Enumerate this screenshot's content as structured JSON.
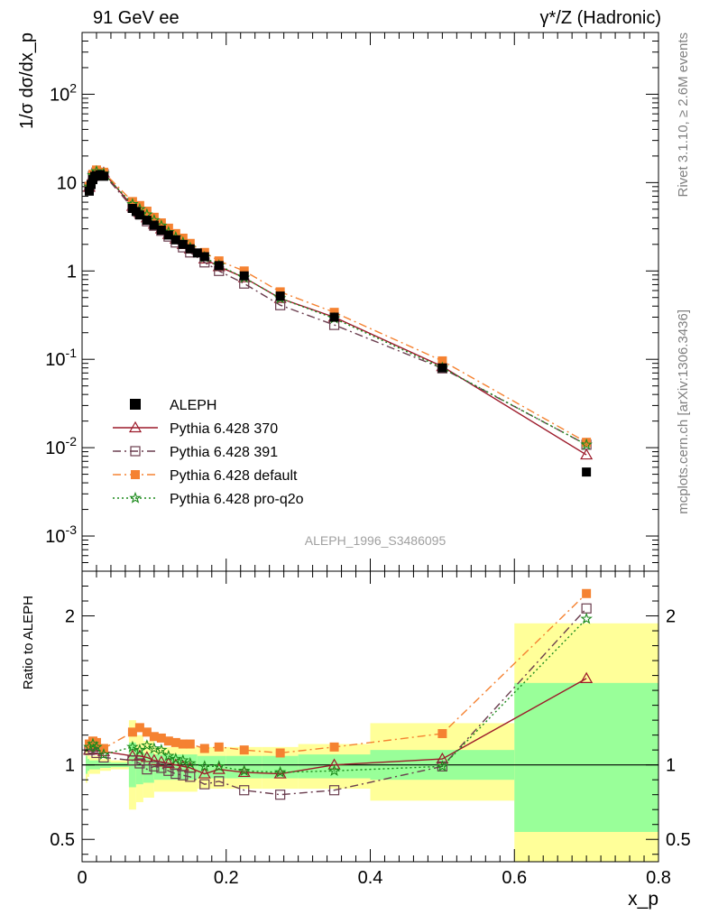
{
  "header": {
    "left_label": "91 GeV ee",
    "right_label": "γ*/Z (Hadronic)"
  },
  "side_labels": {
    "rivet": "Rivet 3.1.10, ≥ 2.6M events",
    "mcplots": "mcplots.cern.ch [arXiv:1306.3436]"
  },
  "analysis_id": "ALEPH_1996_S3486095",
  "chart_data": [
    {
      "type": "scatter",
      "panel": "main",
      "ylabel": "1/σ dσ/dx_p",
      "yscale": "log",
      "ylim": [
        0.0004,
        500
      ],
      "xlim": [
        0,
        0.8
      ],
      "y_ticks": [
        {
          "value": 0.001,
          "label": "10^-3"
        },
        {
          "value": 0.01,
          "label": "10^-2"
        },
        {
          "value": 0.1,
          "label": "10^-1"
        },
        {
          "value": 1,
          "label": "1"
        },
        {
          "value": 10,
          "label": "10"
        },
        {
          "value": 100,
          "label": "10^2"
        }
      ],
      "legend_position": "bottom-left",
      "series": [
        {
          "name": "ALEPH",
          "color": "#000000",
          "line": "none",
          "marker": "filled-square",
          "x": [
            0.01,
            0.0125,
            0.015,
            0.0175,
            0.02,
            0.025,
            0.03,
            0.07,
            0.075,
            0.08,
            0.09,
            0.1,
            0.11,
            0.12,
            0.13,
            0.14,
            0.15,
            0.16,
            0.17,
            0.19,
            0.225,
            0.275,
            0.35,
            0.5,
            0.7
          ],
          "y": [
            8.0,
            9.5,
            10.8,
            11.8,
            12.0,
            12.3,
            11.8,
            5.1,
            4.7,
            4.3,
            3.75,
            3.3,
            2.9,
            2.55,
            2.25,
            2.0,
            1.78,
            1.6,
            1.45,
            1.15,
            0.88,
            0.52,
            0.3,
            0.08,
            0.0053
          ]
        },
        {
          "name": "Pythia 6.428 370",
          "color": "#9c1a2a",
          "line": "solid",
          "marker": "open-triangle",
          "x": [
            0.01,
            0.015,
            0.02,
            0.03,
            0.07,
            0.08,
            0.09,
            0.1,
            0.11,
            0.12,
            0.13,
            0.14,
            0.15,
            0.17,
            0.19,
            0.225,
            0.275,
            0.35,
            0.5,
            0.7
          ],
          "y": [
            8.9,
            11.9,
            13.2,
            12.9,
            5.4,
            4.6,
            4.0,
            3.4,
            3.0,
            2.6,
            2.3,
            2.0,
            1.78,
            1.37,
            1.12,
            0.84,
            0.49,
            0.3,
            0.083,
            0.0083
          ]
        },
        {
          "name": "Pythia 6.428 391",
          "color": "#6a3d4e",
          "line": "dashdot",
          "marker": "open-square",
          "x": [
            0.01,
            0.015,
            0.02,
            0.03,
            0.07,
            0.08,
            0.09,
            0.1,
            0.11,
            0.12,
            0.13,
            0.14,
            0.15,
            0.17,
            0.19,
            0.225,
            0.275,
            0.35,
            0.5,
            0.7
          ],
          "y": [
            8.9,
            11.8,
            13.0,
            12.4,
            5.2,
            4.4,
            3.65,
            3.25,
            2.85,
            2.45,
            2.1,
            1.85,
            1.62,
            1.25,
            1.0,
            0.72,
            0.41,
            0.245,
            0.079,
            0.0108
          ]
        },
        {
          "name": "Pythia 6.428 default",
          "color": "#f58231",
          "line": "dashdot",
          "marker": "filled-square",
          "x": [
            0.01,
            0.015,
            0.02,
            0.03,
            0.07,
            0.08,
            0.09,
            0.1,
            0.11,
            0.12,
            0.13,
            0.14,
            0.15,
            0.17,
            0.19,
            0.225,
            0.275,
            0.35,
            0.5,
            0.7
          ],
          "y": [
            9.1,
            12.4,
            13.9,
            13.1,
            6.1,
            5.5,
            4.75,
            4.05,
            3.5,
            3.05,
            2.65,
            2.35,
            2.05,
            1.62,
            1.3,
            1.0,
            0.58,
            0.34,
            0.096,
            0.0115
          ]
        },
        {
          "name": "Pythia 6.428 pro-q2o",
          "color": "#1c8a1c",
          "line": "dotted",
          "marker": "open-star",
          "x": [
            0.01,
            0.015,
            0.02,
            0.03,
            0.07,
            0.08,
            0.09,
            0.1,
            0.11,
            0.12,
            0.13,
            0.14,
            0.15,
            0.17,
            0.19,
            0.225,
            0.275,
            0.35,
            0.5,
            0.7
          ],
          "y": [
            9.0,
            12.1,
            13.4,
            12.6,
            5.7,
            5.0,
            4.35,
            3.75,
            3.25,
            2.75,
            2.4,
            2.1,
            1.83,
            1.43,
            1.15,
            0.84,
            0.49,
            0.29,
            0.08,
            0.0108
          ]
        }
      ]
    },
    {
      "type": "scatter",
      "panel": "ratio",
      "ylabel": "Ratio to ALEPH",
      "xlabel": "x_p",
      "xlim": [
        0,
        0.8
      ],
      "ylim": [
        0.35,
        2.3
      ],
      "x_ticks": [
        0,
        0.2,
        0.4,
        0.6,
        0.8
      ],
      "x_tick_labels": [
        "0",
        "0.2",
        "0.4",
        "0.6",
        "0.8"
      ],
      "y_ticks": [
        0.5,
        1,
        2
      ],
      "y_tick_labels": [
        "0.5",
        "1",
        "2"
      ],
      "bands": [
        {
          "x0": 0.005,
          "x1": 0.0075,
          "stat": [
            0.94,
            1.06
          ],
          "total": [
            0.88,
            1.12
          ]
        },
        {
          "x0": 0.0075,
          "x1": 0.01,
          "stat": [
            0.96,
            1.04
          ],
          "total": [
            0.92,
            1.08
          ]
        },
        {
          "x0": 0.01,
          "x1": 0.025,
          "stat": [
            0.97,
            1.03
          ],
          "total": [
            0.94,
            1.06
          ]
        },
        {
          "x0": 0.025,
          "x1": 0.04,
          "stat": [
            0.98,
            1.02
          ],
          "total": [
            0.96,
            1.04
          ]
        },
        {
          "x0": 0.04,
          "x1": 0.065,
          "stat": [
            0.985,
            1.015
          ],
          "total": [
            0.97,
            1.03
          ]
        },
        {
          "x0": 0.065,
          "x1": 0.075,
          "stat": [
            0.85,
            1.15
          ],
          "total": [
            0.7,
            1.3
          ]
        },
        {
          "x0": 0.075,
          "x1": 0.085,
          "stat": [
            0.87,
            1.1
          ],
          "total": [
            0.75,
            1.2
          ]
        },
        {
          "x0": 0.085,
          "x1": 0.1,
          "stat": [
            0.88,
            1.08
          ],
          "total": [
            0.78,
            1.16
          ]
        },
        {
          "x0": 0.1,
          "x1": 0.16,
          "stat": [
            0.9,
            1.07
          ],
          "total": [
            0.82,
            1.12
          ]
        },
        {
          "x0": 0.16,
          "x1": 0.2,
          "stat": [
            0.91,
            1.06
          ],
          "total": [
            0.84,
            1.12
          ]
        },
        {
          "x0": 0.2,
          "x1": 0.25,
          "stat": [
            0.91,
            1.06
          ],
          "total": [
            0.84,
            1.12
          ]
        },
        {
          "x0": 0.25,
          "x1": 0.3,
          "stat": [
            0.91,
            1.06
          ],
          "total": [
            0.84,
            1.12
          ]
        },
        {
          "x0": 0.3,
          "x1": 0.4,
          "stat": [
            0.91,
            1.07
          ],
          "total": [
            0.84,
            1.14
          ]
        },
        {
          "x0": 0.4,
          "x1": 0.6,
          "stat": [
            0.9,
            1.1
          ],
          "total": [
            0.76,
            1.28
          ]
        },
        {
          "x0": 0.6,
          "x1": 0.8,
          "stat": [
            0.55,
            1.55
          ],
          "total": [
            0.35,
            1.95
          ]
        }
      ],
      "band_colors": {
        "stat": "#99ff99",
        "total": "#ffff99"
      },
      "series": [
        {
          "name": "Pythia 6.428 370",
          "x": [
            0.01,
            0.015,
            0.02,
            0.03,
            0.07,
            0.08,
            0.09,
            0.1,
            0.11,
            0.12,
            0.13,
            0.14,
            0.15,
            0.17,
            0.19,
            0.225,
            0.275,
            0.35,
            0.5,
            0.7
          ],
          "y": [
            1.1,
            1.12,
            1.1,
            1.09,
            1.06,
            1.06,
            1.05,
            1.03,
            1.02,
            1.01,
            1.0,
            0.99,
            0.98,
            0.94,
            0.97,
            0.95,
            0.94,
            1.0,
            1.04,
            1.58
          ]
        },
        {
          "name": "Pythia 6.428 391",
          "x": [
            0.01,
            0.015,
            0.02,
            0.03,
            0.07,
            0.08,
            0.09,
            0.1,
            0.11,
            0.12,
            0.13,
            0.14,
            0.15,
            0.17,
            0.19,
            0.225,
            0.275,
            0.35,
            0.5,
            0.7
          ],
          "y": [
            1.1,
            1.11,
            1.08,
            1.05,
            1.03,
            1.01,
            0.97,
            0.99,
            0.98,
            0.96,
            0.94,
            0.93,
            0.92,
            0.87,
            0.89,
            0.83,
            0.8,
            0.83,
            0.99,
            2.05
          ]
        },
        {
          "name": "Pythia 6.428 default",
          "x": [
            0.01,
            0.015,
            0.02,
            0.03,
            0.07,
            0.08,
            0.09,
            0.1,
            0.11,
            0.12,
            0.13,
            0.14,
            0.15,
            0.17,
            0.19,
            0.225,
            0.275,
            0.35,
            0.5,
            0.7
          ],
          "y": [
            1.14,
            1.16,
            1.15,
            1.11,
            1.22,
            1.25,
            1.22,
            1.19,
            1.18,
            1.16,
            1.15,
            1.14,
            1.14,
            1.11,
            1.12,
            1.1,
            1.08,
            1.12,
            1.21,
            2.15
          ]
        },
        {
          "name": "Pythia 6.428 pro-q2o",
          "x": [
            0.01,
            0.015,
            0.02,
            0.03,
            0.07,
            0.08,
            0.09,
            0.1,
            0.11,
            0.12,
            0.13,
            0.14,
            0.15,
            0.17,
            0.19,
            0.225,
            0.275,
            0.35,
            0.5,
            0.7
          ],
          "y": [
            1.12,
            1.14,
            1.12,
            1.07,
            1.12,
            1.1,
            1.13,
            1.11,
            1.1,
            1.06,
            1.04,
            1.03,
            1.01,
            0.99,
            0.99,
            0.96,
            0.95,
            0.96,
            0.99,
            1.98
          ]
        }
      ]
    }
  ]
}
